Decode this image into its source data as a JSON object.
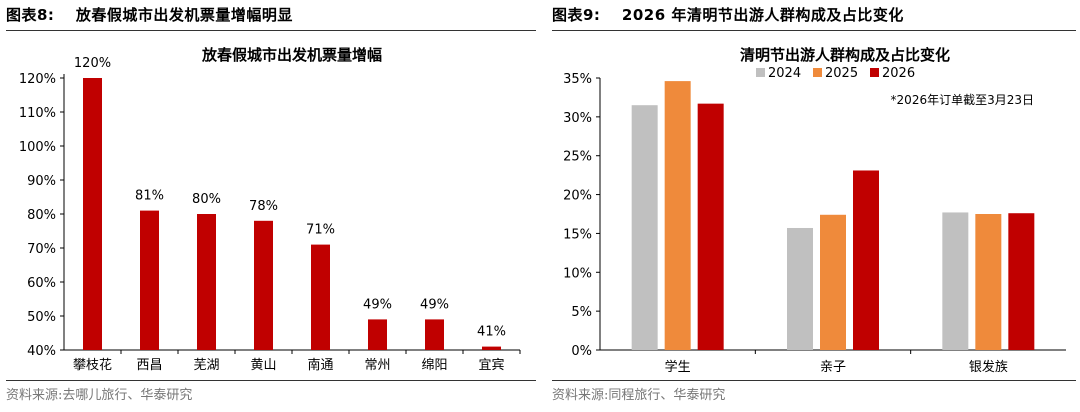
{
  "left": {
    "figure_label": "图表8:",
    "figure_title": "放春假城市出发机票量增幅明显",
    "source": "资料来源:去哪儿旅行、华泰研究"
  },
  "right": {
    "figure_label": "图表9:",
    "figure_title": "2026 年清明节出游人群构成及占比变化",
    "source": "资料来源:同程旅行、华泰研究"
  },
  "chart_data": [
    {
      "type": "bar",
      "title": "放春假城市出发机票量增幅",
      "categories": [
        "攀枝花",
        "西昌",
        "芜湖",
        "黄山",
        "南通",
        "常州",
        "绵阳",
        "宜宾"
      ],
      "values": [
        120,
        81,
        80,
        78,
        71,
        49,
        49,
        41
      ],
      "data_labels": [
        "120%",
        "81%",
        "80%",
        "78%",
        "71%",
        "49%",
        "49%",
        "41%"
      ],
      "y_ticks": [
        "40%",
        "50%",
        "60%",
        "70%",
        "80%",
        "90%",
        "100%",
        "110%",
        "120%"
      ],
      "ylim": [
        40,
        120
      ],
      "unit": "%",
      "grid": false,
      "colors": {
        "bar": "#c00000"
      }
    },
    {
      "type": "bar",
      "title": "清明节出游人群构成及占比变化",
      "categories": [
        "学生",
        "亲子",
        "银发族"
      ],
      "series": [
        {
          "name": "2024",
          "values": [
            31.5,
            15.7,
            17.7
          ],
          "color": "#c0c0c0"
        },
        {
          "name": "2025",
          "values": [
            34.6,
            17.4,
            17.5
          ],
          "color": "#ef8a3b"
        },
        {
          "name": "2026",
          "values": [
            31.7,
            23.1,
            17.6
          ],
          "color": "#c00000"
        }
      ],
      "y_ticks": [
        "0%",
        "5%",
        "10%",
        "15%",
        "20%",
        "25%",
        "30%",
        "35%"
      ],
      "ylim": [
        0,
        35
      ],
      "unit": "%",
      "grid": false,
      "legend": "top",
      "annotation": "*2026年订单截至3月23日"
    }
  ]
}
